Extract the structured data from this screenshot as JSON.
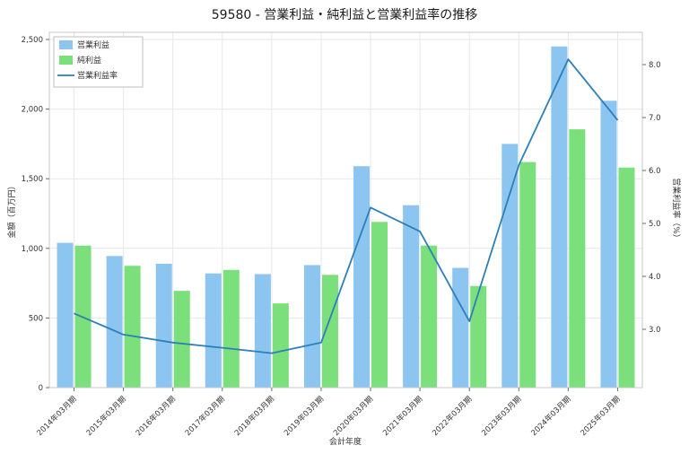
{
  "title": "59580 - 営業利益・純利益と営業利益率の推移",
  "chart_data": {
    "type": "bar",
    "categories": [
      "2014年03月期",
      "2015年03月期",
      "2016年03月期",
      "2017年03月期",
      "2018年03月期",
      "2019年03月期",
      "2020年03月期",
      "2021年03月期",
      "2022年03月期",
      "2023年03月期",
      "2024年03月期",
      "2025年03月期"
    ],
    "series": [
      {
        "name": "営業利益",
        "kind": "bar",
        "axis": "left",
        "color": "#8CC5EF",
        "values": [
          1040,
          945,
          890,
          820,
          815,
          880,
          1590,
          1310,
          860,
          1750,
          2450,
          2060
        ]
      },
      {
        "name": "純利益",
        "kind": "bar",
        "axis": "left",
        "color": "#7BE07B",
        "values": [
          1020,
          875,
          695,
          845,
          605,
          810,
          1190,
          1020,
          730,
          1620,
          1855,
          1580
        ]
      },
      {
        "name": "営業利益率",
        "kind": "line",
        "axis": "right",
        "color": "#2C7FB8",
        "values": [
          3.3,
          2.9,
          2.75,
          2.65,
          2.55,
          2.75,
          5.3,
          4.85,
          3.15,
          6.1,
          8.1,
          6.95
        ]
      }
    ],
    "xlabel": "会計年度",
    "ylabel_left": "金額（百万円）",
    "ylabel_right": "営業利益率（%）",
    "ylim_left": [
      0,
      2500
    ],
    "ylim_right": [
      2.5,
      8.5
    ],
    "yticks_left": [
      0,
      500,
      1000,
      1500,
      2000,
      2500
    ],
    "yticks_left_labels": [
      "0",
      "500",
      "1,000",
      "1,500",
      "2,000",
      "2,500"
    ],
    "yticks_right": [
      3,
      4,
      5,
      6,
      7,
      8
    ],
    "yticks_right_labels": [
      "3.0",
      "4.0",
      "5.0",
      "6.0",
      "7.0",
      "8.0"
    ],
    "grid": true,
    "legend_position": "top-left"
  }
}
